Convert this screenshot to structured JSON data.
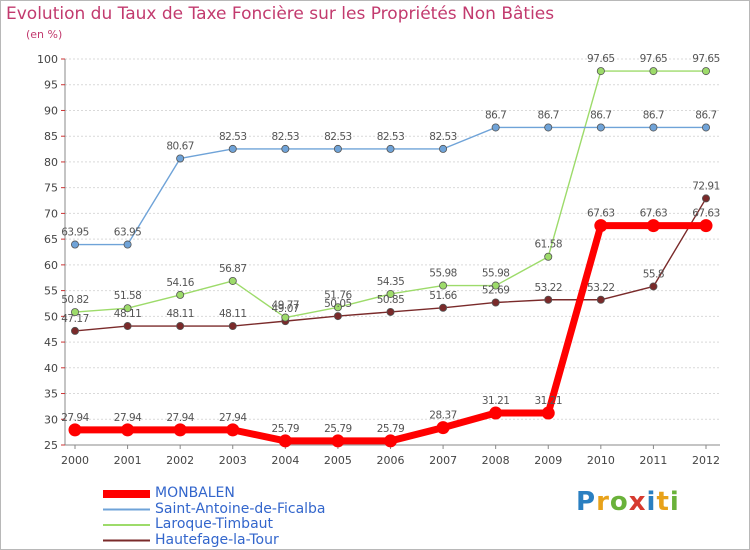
{
  "header": {
    "title": "Evolution du Taux de Taxe Foncière sur les Propriétés Non Bâties",
    "unit": "(en %)"
  },
  "logo": {
    "letters": [
      "P",
      "r",
      "o",
      "x",
      "i",
      "t",
      "i"
    ],
    "colors": [
      "#2a7fc1",
      "#e8a21a",
      "#6ab23a",
      "#d63a2f",
      "#2a7fc1",
      "#e8a21a",
      "#6ab23a"
    ]
  },
  "chart_data": {
    "type": "line",
    "title": "Evolution du Taux de Taxe Foncière sur les Propriétés Non Bâties",
    "xlabel": "",
    "ylabel": "(en %)",
    "ylim": [
      25,
      100
    ],
    "yticks": [
      25,
      30,
      35,
      40,
      45,
      50,
      55,
      60,
      65,
      70,
      75,
      80,
      85,
      90,
      95,
      100
    ],
    "grid": true,
    "categories": [
      "2000",
      "2001",
      "2002",
      "2003",
      "2004",
      "2005",
      "2006",
      "2007",
      "2008",
      "2009",
      "2010",
      "2011",
      "2012"
    ],
    "legend_position": "bottom-left",
    "series": [
      {
        "name": "MONBALEN",
        "color": "#ff0000",
        "values": [
          27.94,
          27.94,
          27.94,
          27.94,
          25.79,
          25.79,
          25.79,
          28.37,
          31.21,
          31.21,
          67.63,
          67.63,
          67.63
        ],
        "labels": [
          "27.94",
          "27.94",
          "27.94",
          "27.94",
          "25.79",
          "25.79",
          "25.79",
          "28.37",
          "31.21",
          "31.21",
          "67.63",
          "67.63",
          "67.63"
        ]
      },
      {
        "name": "Saint-Antoine-de-Ficalba",
        "color": "#6fa3d8",
        "values": [
          63.95,
          63.95,
          80.67,
          82.53,
          82.53,
          82.53,
          82.53,
          82.53,
          86.7,
          86.7,
          86.7,
          86.7,
          86.7
        ],
        "labels": [
          "63.95",
          "63.95",
          "80.67",
          "82.53",
          "82.53",
          "82.53",
          "82.53",
          "82.53",
          "86.7",
          "86.7",
          "86.7",
          "86.7",
          "86.7"
        ]
      },
      {
        "name": "Laroque-Timbaut",
        "color": "#9ddb6a",
        "values": [
          50.82,
          51.58,
          54.16,
          56.87,
          49.77,
          51.76,
          54.35,
          55.98,
          55.98,
          61.58,
          97.65,
          97.65,
          97.65
        ],
        "labels": [
          "50.82",
          "51.58",
          "54.16",
          "56.87",
          "49.77",
          "51.76",
          "54.35",
          "55.98",
          "55.98",
          "61.58",
          "97.65",
          "97.65",
          "97.65"
        ]
      },
      {
        "name": "Hautefage-la-Tour",
        "color": "#7a2a2a",
        "values": [
          47.17,
          48.11,
          48.11,
          48.11,
          49.07,
          50.05,
          50.85,
          51.66,
          52.69,
          53.22,
          53.22,
          55.8,
          72.91
        ],
        "labels": [
          "47.17",
          "48.11",
          "48.11",
          "48.11",
          "49.07",
          "50.05",
          "50.85",
          "51.66",
          "52.69",
          "53.22",
          "53.22",
          "55.8",
          "72.91"
        ]
      }
    ]
  }
}
